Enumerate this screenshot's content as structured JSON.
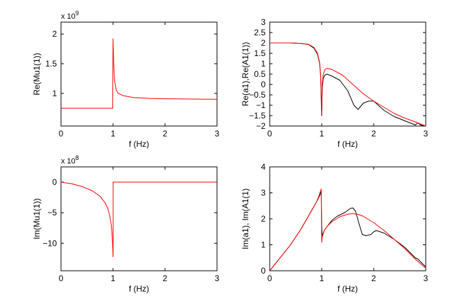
{
  "figure": {
    "background": "#ffffff"
  },
  "chart_data": [
    {
      "type": "line",
      "ylabel": "Re(Mu1(1))",
      "xlabel": "f (Hz)",
      "exponent": {
        "base": "x 10",
        "power": "9"
      },
      "xlim": [
        0,
        3
      ],
      "ylim": [
        0.45,
        2.2
      ],
      "xticks": [
        0,
        1,
        2,
        3
      ],
      "xtick_labels": [
        "0",
        "1",
        "2",
        "3"
      ],
      "yticks": [
        1,
        1.5,
        2
      ],
      "ytick_labels": [
        "1",
        "1.5",
        "2"
      ],
      "series": [
        {
          "name": "Re(Mu1(1))",
          "color": "#ff0000",
          "x": [
            0,
            0.5,
            0.99,
            0.995,
            0.995,
            1.0,
            1.015,
            1.03,
            1.06,
            1.1,
            1.2,
            1.4,
            1.7,
            2.0,
            2.5,
            3.0
          ],
          "y": [
            0.75,
            0.75,
            0.75,
            0.75,
            1.0,
            1.92,
            1.45,
            1.22,
            1.06,
            1.0,
            0.96,
            0.93,
            0.915,
            0.91,
            0.905,
            0.9
          ]
        }
      ]
    },
    {
      "type": "line",
      "ylabel": "Re(a1),Re(A1(1))",
      "xlabel": "f (Hz)",
      "xlim": [
        0,
        3
      ],
      "ylim": [
        -2,
        3
      ],
      "xticks": [
        0,
        1,
        2,
        3
      ],
      "xtick_labels": [
        "0",
        "1",
        "2",
        "3"
      ],
      "yticks": [
        -2,
        -1.5,
        -1,
        -0.5,
        0,
        0.5,
        1,
        1.5,
        2,
        2.5,
        3
      ],
      "ytick_labels": [
        "−2",
        "−1.5",
        "−1",
        "−0.5",
        "0",
        "0.5",
        "1",
        "1.5",
        "2",
        "2.5",
        "3"
      ],
      "series": [
        {
          "name": "Re(a1)",
          "color": "#000000",
          "x": [
            0,
            0.4,
            0.6,
            0.75,
            0.85,
            0.92,
            0.96,
            0.98,
            0.995,
            1.0,
            1.01,
            1.03,
            1.06,
            1.1,
            1.2,
            1.35,
            1.5,
            1.62,
            1.7,
            1.8,
            1.9,
            2.0,
            2.2,
            2.4,
            2.6,
            2.8,
            2.85,
            2.9,
            3.0
          ],
          "y": [
            2.0,
            2.0,
            1.98,
            1.92,
            1.75,
            1.45,
            1.0,
            0.4,
            -1.2,
            -1.5,
            -0.2,
            0.3,
            0.45,
            0.5,
            0.4,
            0.2,
            -0.3,
            -1.0,
            -1.2,
            -0.9,
            -0.8,
            -0.8,
            -1.25,
            -1.55,
            -1.75,
            -1.95,
            -1.85,
            -1.95,
            -2.0
          ]
        },
        {
          "name": "Re(A1(1))",
          "color": "#ff0000",
          "x": [
            0,
            0.4,
            0.6,
            0.75,
            0.85,
            0.92,
            0.96,
            0.98,
            0.995,
            1.0,
            1.01,
            1.03,
            1.06,
            1.1,
            1.2,
            1.4,
            1.6,
            1.8,
            2.0,
            2.2,
            2.4,
            2.6,
            2.8,
            3.0
          ],
          "y": [
            2.0,
            2.0,
            1.98,
            1.93,
            1.78,
            1.5,
            1.05,
            0.45,
            -1.0,
            -1.4,
            0.0,
            0.5,
            0.7,
            0.78,
            0.72,
            0.45,
            0.0,
            -0.45,
            -0.8,
            -1.1,
            -1.4,
            -1.62,
            -1.8,
            -2.0
          ]
        }
      ]
    },
    {
      "type": "line",
      "ylabel": "Im(Mu1(1))",
      "xlabel": "f (Hz)",
      "exponent": {
        "base": "x 10",
        "power": "8"
      },
      "xlim": [
        0,
        3
      ],
      "ylim": [
        -14.5,
        2.5
      ],
      "xticks": [
        0,
        1,
        2,
        3
      ],
      "xtick_labels": [
        "0",
        "1",
        "2",
        "3"
      ],
      "yticks": [
        -10,
        -5,
        0
      ],
      "ytick_labels": [
        "−10",
        "−5",
        "0"
      ],
      "series": [
        {
          "name": "Im(Mu1(1))",
          "color": "#ff0000",
          "x": [
            0,
            0.2,
            0.4,
            0.6,
            0.75,
            0.85,
            0.9,
            0.94,
            0.965,
            0.98,
            0.99,
            0.997,
            1.0,
            1.002,
            1.002,
            1.5,
            2.0,
            2.5,
            3.0
          ],
          "y": [
            0.0,
            -0.25,
            -0.7,
            -1.4,
            -2.3,
            -3.4,
            -4.3,
            -5.6,
            -7.0,
            -8.3,
            -9.8,
            -11.2,
            -12.2,
            -12.2,
            0.0,
            0.0,
            0.0,
            0.0,
            0.0
          ]
        }
      ]
    },
    {
      "type": "line",
      "ylabel": "Im(a1), Im(A1(1)",
      "xlabel": "f (Hz)",
      "xlim": [
        0,
        3
      ],
      "ylim": [
        0,
        4
      ],
      "xticks": [
        0,
        1,
        2,
        3
      ],
      "xtick_labels": [
        "0",
        "1",
        "2",
        "3"
      ],
      "yticks": [
        0,
        1,
        2,
        3,
        4
      ],
      "ytick_labels": [
        "0",
        "1",
        "2",
        "3",
        "4"
      ],
      "series": [
        {
          "name": "Im(a1)",
          "color": "#000000",
          "x": [
            0,
            0.1,
            0.2,
            0.3,
            0.4,
            0.5,
            0.6,
            0.7,
            0.8,
            0.9,
            0.95,
            0.99,
            1.0,
            1.01,
            1.05,
            1.1,
            1.2,
            1.3,
            1.45,
            1.55,
            1.6,
            1.65,
            1.72,
            1.78,
            1.85,
            1.95,
            2.0,
            2.05,
            2.2,
            2.4,
            2.6,
            2.8,
            2.85,
            2.9,
            3.0
          ],
          "y": [
            0.0,
            0.25,
            0.5,
            0.75,
            1.0,
            1.3,
            1.6,
            1.95,
            2.3,
            2.65,
            2.85,
            3.05,
            1.7,
            1.35,
            1.55,
            1.7,
            1.95,
            2.1,
            2.25,
            2.4,
            2.42,
            2.3,
            1.8,
            1.4,
            1.35,
            1.4,
            1.5,
            1.55,
            1.45,
            1.2,
            0.9,
            0.5,
            0.45,
            0.35,
            0.15
          ]
        },
        {
          "name": "Im(A1(1))",
          "color": "#ff0000",
          "x": [
            0,
            0.1,
            0.2,
            0.3,
            0.4,
            0.5,
            0.6,
            0.7,
            0.8,
            0.9,
            0.95,
            0.99,
            1.0,
            1.01,
            1.05,
            1.1,
            1.2,
            1.35,
            1.5,
            1.6,
            1.7,
            1.8,
            2.0,
            2.2,
            2.4,
            2.6,
            2.8,
            3.0
          ],
          "y": [
            0.0,
            0.25,
            0.5,
            0.75,
            1.0,
            1.3,
            1.6,
            1.95,
            2.3,
            2.65,
            2.9,
            3.15,
            1.1,
            1.3,
            1.55,
            1.7,
            1.9,
            2.08,
            2.18,
            2.2,
            2.17,
            2.1,
            1.85,
            1.55,
            1.2,
            0.85,
            0.45,
            0.1
          ]
        }
      ]
    }
  ]
}
